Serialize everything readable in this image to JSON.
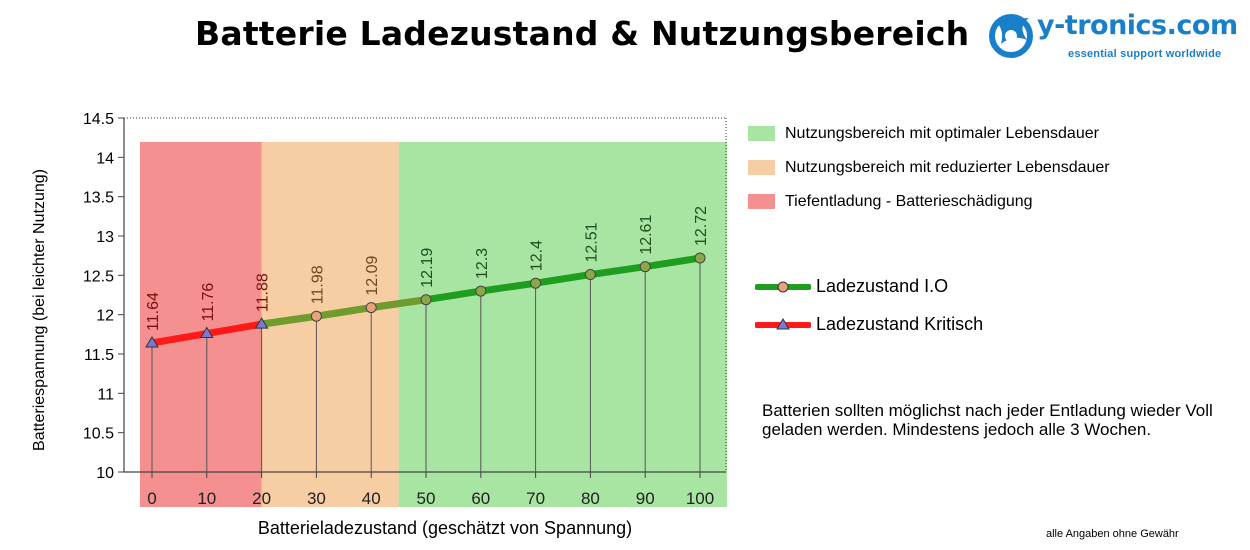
{
  "header": {
    "title": "Batterie Ladezustand & Nutzungsbereich",
    "logo_name": "y-tronics.com",
    "logo_tagline": "essential support worldwide",
    "logo_icon": "y-tronics-wave-logo-icon"
  },
  "zones": [
    {
      "label": "Nutzungsbereich mit optimaler Lebensdauer",
      "color": "#a8e4a2",
      "from": 45,
      "to": 105
    },
    {
      "label": "Nutzungsbereich mit reduzierter Lebensdauer",
      "color": "#f7cda4",
      "from": 20,
      "to": 45
    },
    {
      "label": "Tiefentladung - Batterieschädigung",
      "color": "#f49090",
      "from": -5,
      "to": 20
    }
  ],
  "chart_data": {
    "type": "line",
    "xlabel": "Batterieladezustand (geschätzt von Spannung)",
    "ylabel": "Batteriespannung (bei leichter Nutzung)",
    "x": [
      0,
      10,
      20,
      30,
      40,
      50,
      60,
      70,
      80,
      90,
      100
    ],
    "y": [
      11.64,
      11.76,
      11.88,
      11.98,
      12.09,
      12.19,
      12.3,
      12.4,
      12.51,
      12.61,
      12.72
    ],
    "data_labels": [
      "11.64",
      "11.76",
      "11.88",
      "11.98",
      "12.09",
      "12.19",
      "12.3",
      "12.4",
      "12.51",
      "12.61",
      "12.72"
    ],
    "yticks": [
      10,
      10.5,
      11,
      11.5,
      12,
      12.5,
      13,
      13.5,
      14,
      14.5
    ],
    "ytick_labels": [
      "10",
      "10.5",
      "11",
      "11.5",
      "12",
      "12.5",
      "13",
      "13.5",
      "14",
      "14.5"
    ],
    "xtick_labels": [
      "0",
      "10",
      "20",
      "30",
      "40",
      "50",
      "60",
      "70",
      "80",
      "90",
      "100"
    ],
    "ylim": [
      10,
      14.5
    ],
    "series": [
      {
        "name": "Ladezustand I.O",
        "color": "#1e9e1e",
        "marker": "circle",
        "marker_color": "#e7a27a",
        "x": [
          20,
          30,
          40,
          50,
          60,
          70,
          80,
          90,
          100
        ]
      },
      {
        "name": "Ladezustand Kritisch",
        "color": "#ff1a1a",
        "marker": "triangle",
        "marker_color": "#7a7ad6",
        "x": [
          0,
          10,
          20
        ]
      }
    ]
  },
  "note": "Batterien sollten möglichst nach jeder Entladung wieder Voll geladen werden. Mindestens jedoch alle 3 Wochen.",
  "disclaimer": "alle Angaben ohne Gewähr"
}
